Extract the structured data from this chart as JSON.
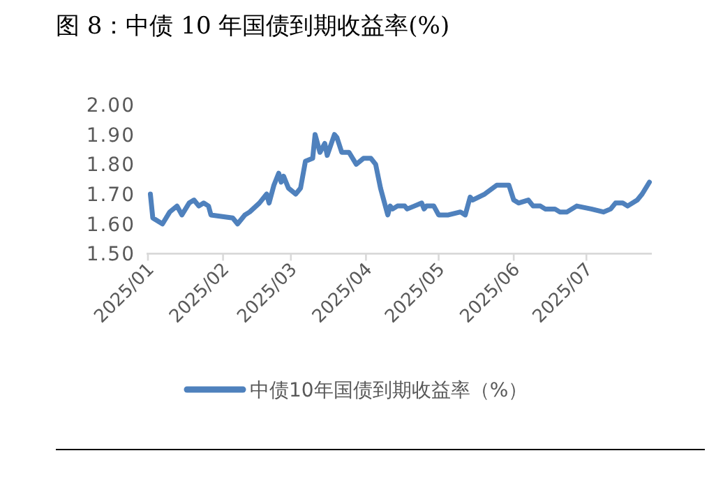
{
  "chart_data": {
    "type": "line",
    "title": "图 8：中债 10 年国债到期收益率(%)",
    "x": [
      "2025-01-02",
      "2025-01-03",
      "2025-01-07",
      "2025-01-10",
      "2025-01-13",
      "2025-01-15",
      "2025-01-18",
      "2025-01-20",
      "2025-01-22",
      "2025-01-24",
      "2025-01-26",
      "2025-01-27",
      "2025-02-05",
      "2025-02-07",
      "2025-02-10",
      "2025-02-12",
      "2025-02-16",
      "2025-02-19",
      "2025-02-20",
      "2025-02-22",
      "2025-02-24",
      "2025-02-25",
      "2025-02-26",
      "2025-02-28",
      "2025-03-03",
      "2025-03-05",
      "2025-03-07",
      "2025-03-10",
      "2025-03-11",
      "2025-03-13",
      "2025-03-15",
      "2025-03-16",
      "2025-03-19",
      "2025-03-20",
      "2025-03-22",
      "2025-03-25",
      "2025-03-28",
      "2025-03-31",
      "2025-04-03",
      "2025-04-05",
      "2025-04-07",
      "2025-04-10",
      "2025-04-11",
      "2025-04-12",
      "2025-04-14",
      "2025-04-17",
      "2025-04-18",
      "2025-04-21",
      "2025-04-24",
      "2025-04-25",
      "2025-04-26",
      "2025-04-29",
      "2025-05-01",
      "2025-05-05",
      "2025-05-10",
      "2025-05-12",
      "2025-05-14",
      "2025-05-15",
      "2025-05-20",
      "2025-05-25",
      "2025-05-30",
      "2025-06-01",
      "2025-06-03",
      "2025-06-07",
      "2025-06-09",
      "2025-06-12",
      "2025-06-14",
      "2025-06-18",
      "2025-06-20",
      "2025-06-23",
      "2025-06-27",
      "2025-07-03",
      "2025-07-08",
      "2025-07-11",
      "2025-07-13",
      "2025-07-16",
      "2025-07-18",
      "2025-07-22",
      "2025-07-24",
      "2025-07-27"
    ],
    "series": [
      {
        "name": "中债10年国债到期收益率（%）",
        "color": "#4f81bd",
        "values": [
          1.7,
          1.62,
          1.6,
          1.64,
          1.66,
          1.63,
          1.67,
          1.68,
          1.66,
          1.67,
          1.66,
          1.63,
          1.62,
          1.6,
          1.63,
          1.64,
          1.67,
          1.7,
          1.67,
          1.73,
          1.77,
          1.74,
          1.76,
          1.72,
          1.7,
          1.72,
          1.81,
          1.82,
          1.9,
          1.84,
          1.87,
          1.83,
          1.9,
          1.89,
          1.84,
          1.84,
          1.8,
          1.82,
          1.82,
          1.8,
          1.72,
          1.63,
          1.66,
          1.65,
          1.66,
          1.66,
          1.65,
          1.66,
          1.67,
          1.65,
          1.66,
          1.66,
          1.63,
          1.63,
          1.64,
          1.63,
          1.69,
          1.68,
          1.7,
          1.73,
          1.73,
          1.68,
          1.67,
          1.68,
          1.66,
          1.66,
          1.65,
          1.65,
          1.64,
          1.64,
          1.66,
          1.65,
          1.64,
          1.65,
          1.67,
          1.67,
          1.66,
          1.68,
          1.7,
          1.74
        ]
      }
    ],
    "xlim": [
      "2025-01-01",
      "2025-07-28"
    ],
    "xticks": [
      {
        "value": "2025-01",
        "label": "2025/01"
      },
      {
        "value": "2025-02",
        "label": "2025/02"
      },
      {
        "value": "2025-03",
        "label": "2025/03"
      },
      {
        "value": "2025-04",
        "label": "2025/04"
      },
      {
        "value": "2025-05",
        "label": "2025/05"
      },
      {
        "value": "2025-06",
        "label": "2025/06"
      },
      {
        "value": "2025-07",
        "label": "2025/07"
      }
    ],
    "ylim": [
      1.5,
      2.0
    ],
    "yticks": [
      {
        "value": 1.5,
        "label": "1.50"
      },
      {
        "value": 1.6,
        "label": "1.60"
      },
      {
        "value": 1.7,
        "label": "1.70"
      },
      {
        "value": 1.8,
        "label": "1.80"
      },
      {
        "value": 1.9,
        "label": "1.90"
      },
      {
        "value": 2.0,
        "label": "2.00"
      }
    ],
    "legend": "bottom",
    "grid": false
  }
}
